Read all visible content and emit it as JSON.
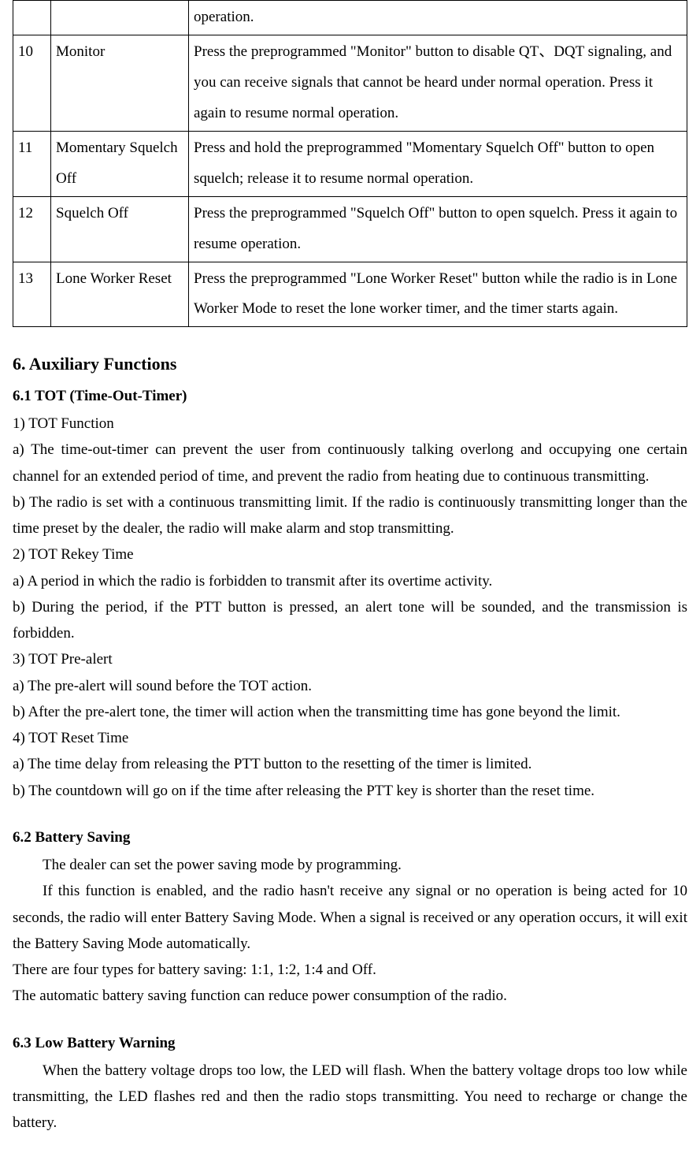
{
  "table": {
    "border_color": "#000000",
    "rows": [
      {
        "num": "",
        "name": "",
        "desc": "operation."
      },
      {
        "num": "10",
        "name": "Monitor",
        "desc": "Press the preprogrammed \"Monitor\" button to disable QT、DQT signaling, and you can receive signals that cannot be heard under normal operation. Press it again to resume normal operation."
      },
      {
        "num": "11",
        "name": "Momentary Squelch Off",
        "desc": "Press and hold the preprogrammed \"Momentary Squelch Off\" button to open squelch; release it to resume normal operation."
      },
      {
        "num": "12",
        "name": "Squelch Off",
        "desc": "Press the preprogrammed \"Squelch Off\" button to open squelch. Press it again to resume operation."
      },
      {
        "num": "13",
        "name": "Lone Worker Reset",
        "desc": "Press the preprogrammed \"Lone Worker Reset\" button while the radio is in Lone Worker Mode to reset the lone worker timer, and the timer starts again."
      }
    ]
  },
  "section6": {
    "title": "6. Auxiliary Functions",
    "s61": {
      "title": "6.1 TOT (Time-Out-Timer)",
      "p1": "1) TOT Function",
      "p1a": "a) The time-out-timer can prevent the user from continuously talking overlong and occupying one certain channel for an extended period of time, and prevent the radio from heating due to continuous transmitting.",
      "p1b": "b) The radio is set with a continuous transmitting limit. If the radio is continuously transmitting longer than the time preset by the dealer, the radio will make alarm and stop transmitting.",
      "p2": "2) TOT Rekey Time",
      "p2a": "a) A period in which the radio is forbidden to transmit after its overtime activity.",
      "p2b": "b) During the period, if the PTT button is pressed, an alert tone will be sounded, and the transmission is forbidden.",
      "p3": "3) TOT Pre-alert",
      "p3a": "a) The pre-alert will sound before the TOT action.",
      "p3b": "b) After the pre-alert tone, the timer will action when the transmitting time has gone beyond the limit.",
      "p4": "4) TOT Reset Time",
      "p4a": "a) The time delay from releasing the PTT button to the resetting of the timer is limited.",
      "p4b": "b) The countdown will go on if the time after releasing the PTT key is shorter than the reset time."
    },
    "s62": {
      "title": "6.2 Battery Saving",
      "p1": "The dealer can set the power saving mode by programming.",
      "p2": "If this function is enabled, and the radio hasn't receive any signal or no operation is being acted for 10 seconds, the radio will enter Battery Saving Mode. When a signal is received or any operation occurs, it will exit the Battery Saving Mode automatically.",
      "p3": "There are four types for battery saving: 1:1, 1:2, 1:4 and Off.",
      "p4": "The automatic battery saving function can reduce power consumption of the radio."
    },
    "s63": {
      "title": "6.3 Low Battery Warning",
      "p1": "When the battery voltage drops too low, the LED will flash. When the battery voltage drops too low while transmitting, the LED flashes red and then the radio stops transmitting. You need to recharge or change the battery."
    }
  }
}
